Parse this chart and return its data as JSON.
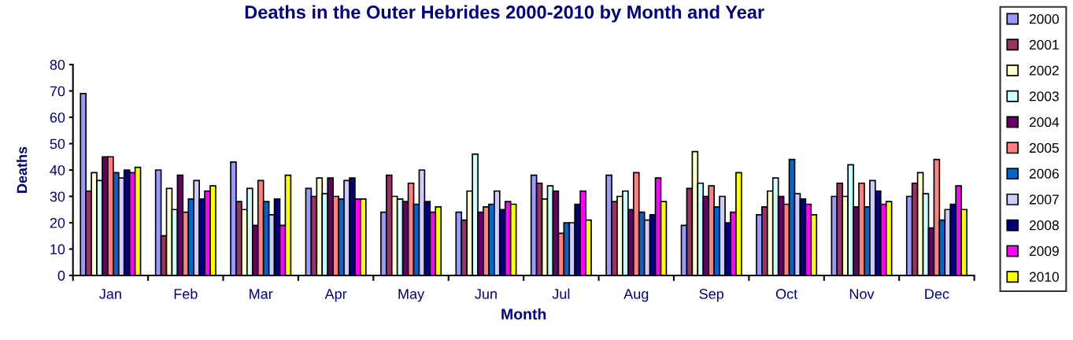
{
  "chart_data": {
    "type": "bar",
    "title": "Deaths in the Outer Hebrides 2000-2010 by Month and Year",
    "xlabel": "Month",
    "ylabel": "Deaths",
    "categories": [
      "Jan",
      "Feb",
      "Mar",
      "Apr",
      "May",
      "Jun",
      "Jul",
      "Aug",
      "Sep",
      "Oct",
      "Nov",
      "Dec"
    ],
    "series": [
      {
        "name": "2000",
        "color": "#9999ff",
        "values": [
          69,
          40,
          43,
          33,
          24,
          24,
          38,
          38,
          19,
          23,
          30,
          30
        ]
      },
      {
        "name": "2001",
        "color": "#993366",
        "values": [
          32,
          15,
          28,
          30,
          38,
          21,
          35,
          28,
          33,
          26,
          35,
          35
        ]
      },
      {
        "name": "2002",
        "color": "#ffffcc",
        "values": [
          39,
          33,
          25,
          37,
          30,
          32,
          29,
          30,
          47,
          32,
          30,
          39
        ]
      },
      {
        "name": "2003",
        "color": "#ccffff",
        "values": [
          36,
          25,
          33,
          31,
          29,
          46,
          34,
          32,
          35,
          37,
          42,
          31
        ]
      },
      {
        "name": "2004",
        "color": "#660066",
        "values": [
          45,
          38,
          19,
          37,
          28,
          24,
          32,
          25,
          30,
          30,
          26,
          18
        ]
      },
      {
        "name": "2005",
        "color": "#ff8080",
        "values": [
          45,
          24,
          36,
          30,
          35,
          26,
          16,
          39,
          34,
          27,
          35,
          44
        ]
      },
      {
        "name": "2006",
        "color": "#0066cc",
        "values": [
          39,
          29,
          28,
          29,
          27,
          27,
          20,
          24,
          26,
          44,
          26,
          21
        ]
      },
      {
        "name": "2007",
        "color": "#ccccff",
        "values": [
          37,
          36,
          23,
          36,
          40,
          32,
          20,
          21,
          30,
          31,
          36,
          25
        ]
      },
      {
        "name": "2008",
        "color": "#000080",
        "values": [
          40,
          29,
          29,
          37,
          28,
          25,
          27,
          23,
          20,
          29,
          32,
          27
        ]
      },
      {
        "name": "2009",
        "color": "#ff00ff",
        "values": [
          39,
          32,
          19,
          29,
          24,
          28,
          32,
          37,
          24,
          27,
          27,
          34
        ]
      },
      {
        "name": "2010",
        "color": "#ffff00",
        "values": [
          41,
          34,
          38,
          29,
          26,
          27,
          21,
          28,
          39,
          23,
          28,
          25
        ]
      }
    ],
    "ylim": [
      0,
      80
    ],
    "yticks": [
      0,
      10,
      20,
      30,
      40,
      50,
      60,
      70,
      80
    ],
    "grid": false,
    "legend": "right"
  }
}
